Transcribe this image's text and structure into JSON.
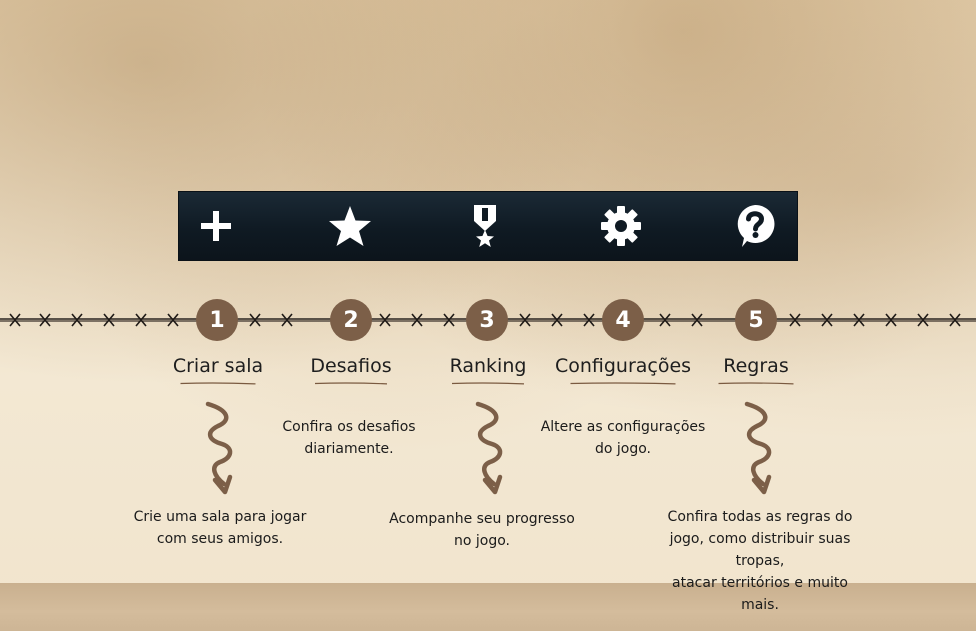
{
  "toolbar": {
    "icons": [
      "plus-icon",
      "star-icon",
      "medal-icon",
      "gear-icon",
      "help-icon"
    ]
  },
  "steps": [
    {
      "number": "1",
      "label": "Criar sala",
      "description": "Crie uma sala para jogar com seus amigos.",
      "desc_lines": [
        "Crie uma sala para jogar",
        "com seus amigos."
      ]
    },
    {
      "number": "2",
      "label": "Desafios",
      "description": "Confira os desafios diariamente.",
      "desc_lines": [
        "Confira os desafios",
        "diariamente."
      ]
    },
    {
      "number": "3",
      "label": "Ranking",
      "description": "Acompanhe seu progresso no jogo.",
      "desc_lines": [
        "Acompanhe seu progresso",
        "no jogo."
      ]
    },
    {
      "number": "4",
      "label": "Configurações",
      "description": "Altere as configurações do jogo.",
      "desc_lines": [
        "Altere as configurações",
        "do jogo."
      ]
    },
    {
      "number": "5",
      "label": "Regras",
      "description": "Confira todas as regras do jogo, como distribuir suas tropas, atacar territórios e muito mais.",
      "desc_lines": [
        "Confira todas as regras do",
        "jogo, como distribuir suas tropas,",
        "atacar territórios e muito mais."
      ]
    }
  ],
  "colors": {
    "toolbar_bg": "#0f1a23",
    "step_circle": "#7c5f48",
    "arrow": "#7c5f48",
    "underline": "#7a5a40"
  }
}
